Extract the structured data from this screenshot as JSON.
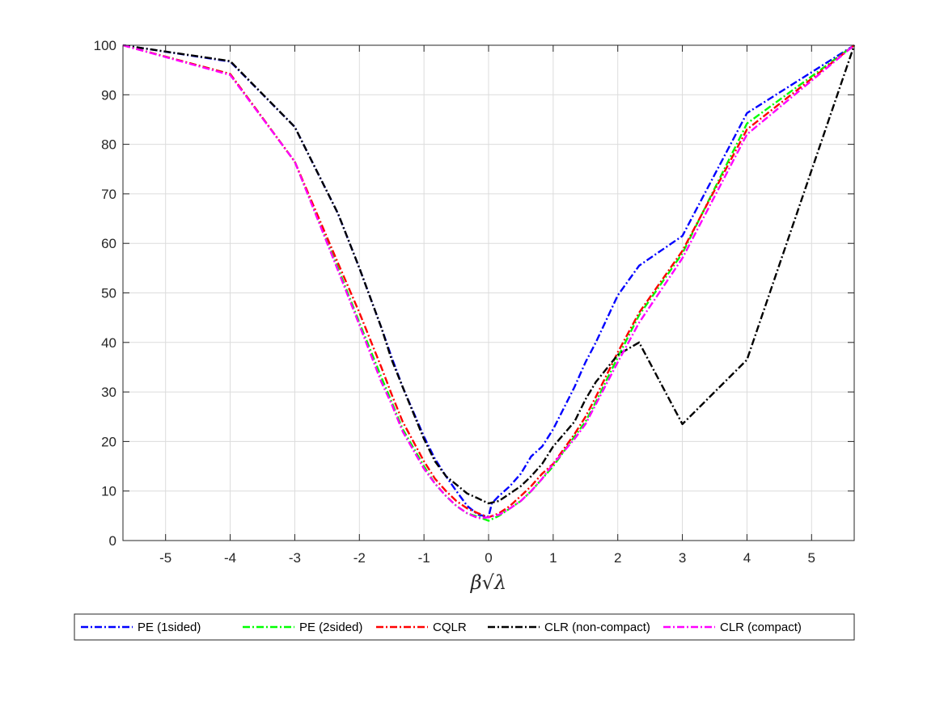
{
  "chart_data": {
    "type": "line",
    "title": "",
    "xlabel": "βλ",
    "xlabel_parts": {
      "beta": "β",
      "sqrt": "√",
      "lambda": "λ"
    },
    "ylabel": "",
    "xlim": [
      -5.66,
      5.66
    ],
    "ylim": [
      0,
      100
    ],
    "grid": true,
    "legend_placement": "bottom-outside",
    "x_ticks": [
      -5,
      -4,
      -3,
      -2,
      -1,
      0,
      1,
      2,
      3,
      4,
      5
    ],
    "x_tick_labels": [
      "-5",
      "-4",
      "-3",
      "-2",
      "-1",
      "0",
      "1",
      "2",
      "3",
      "4",
      "5"
    ],
    "y_ticks": [
      0,
      10,
      20,
      30,
      40,
      50,
      60,
      70,
      80,
      90,
      100
    ],
    "y_tick_labels": [
      "0",
      "10",
      "20",
      "30",
      "40",
      "50",
      "60",
      "70",
      "80",
      "90",
      "100"
    ],
    "series": [
      {
        "name": "PE (1sided)",
        "color": "#0000ff",
        "points": [
          [
            -5.66,
            100
          ],
          [
            -4,
            96.7
          ],
          [
            -3,
            83.5
          ],
          [
            -2.33,
            66
          ],
          [
            -2,
            55
          ],
          [
            -1.66,
            43
          ],
          [
            -1.5,
            37
          ],
          [
            -1.33,
            31
          ],
          [
            -1,
            21
          ],
          [
            -0.83,
            16.5
          ],
          [
            -0.66,
            13
          ],
          [
            -0.5,
            10
          ],
          [
            -0.33,
            7
          ],
          [
            -0.16,
            5.2
          ],
          [
            0,
            4.8
          ],
          [
            0.05,
            7.5
          ],
          [
            0.16,
            9
          ],
          [
            0.33,
            11
          ],
          [
            0.5,
            13.5
          ],
          [
            0.66,
            17
          ],
          [
            0.83,
            19
          ],
          [
            1,
            22.5
          ],
          [
            1.33,
            31
          ],
          [
            1.5,
            36
          ],
          [
            1.66,
            40
          ],
          [
            2,
            49.5
          ],
          [
            2.33,
            55.5
          ],
          [
            3,
            61.5
          ],
          [
            4,
            86.3
          ],
          [
            5.66,
            100
          ]
        ]
      },
      {
        "name": "PE (2sided)",
        "color": "#00ff00",
        "points": [
          [
            -5.66,
            100
          ],
          [
            -4,
            94.2
          ],
          [
            -3,
            76.5
          ],
          [
            -2.33,
            55
          ],
          [
            -2,
            44
          ],
          [
            -1.66,
            33
          ],
          [
            -1.5,
            28
          ],
          [
            -1.33,
            22.5
          ],
          [
            -1,
            15
          ],
          [
            -0.83,
            11.5
          ],
          [
            -0.66,
            9
          ],
          [
            -0.5,
            7
          ],
          [
            -0.33,
            5.5
          ],
          [
            -0.16,
            4.8
          ],
          [
            0,
            4
          ],
          [
            0.16,
            5
          ],
          [
            0.33,
            6.5
          ],
          [
            0.5,
            8
          ],
          [
            0.66,
            10
          ],
          [
            0.83,
            12.5
          ],
          [
            1,
            15
          ],
          [
            1.33,
            21
          ],
          [
            1.5,
            24
          ],
          [
            1.66,
            28
          ],
          [
            2,
            37
          ],
          [
            2.33,
            45.5
          ],
          [
            3,
            58
          ],
          [
            4,
            84.2
          ],
          [
            5.66,
            100
          ]
        ]
      },
      {
        "name": "CQLR",
        "color": "#ff0000",
        "points": [
          [
            -5.66,
            100
          ],
          [
            -4,
            94.2
          ],
          [
            -3,
            76.5
          ],
          [
            -2.33,
            56
          ],
          [
            -2,
            46
          ],
          [
            -1.66,
            35
          ],
          [
            -1.5,
            29.5
          ],
          [
            -1.33,
            24
          ],
          [
            -1,
            16
          ],
          [
            -0.83,
            12.5
          ],
          [
            -0.66,
            10
          ],
          [
            -0.5,
            8
          ],
          [
            -0.33,
            6.5
          ],
          [
            -0.16,
            5.5
          ],
          [
            0,
            4.7
          ],
          [
            0.16,
            5.5
          ],
          [
            0.33,
            7
          ],
          [
            0.5,
            9
          ],
          [
            0.66,
            11
          ],
          [
            0.83,
            13.5
          ],
          [
            1,
            15.5
          ],
          [
            1.33,
            21.5
          ],
          [
            1.5,
            25
          ],
          [
            1.66,
            29
          ],
          [
            2,
            38
          ],
          [
            2.33,
            46
          ],
          [
            3,
            58.5
          ],
          [
            4,
            83
          ],
          [
            5.66,
            100
          ]
        ]
      },
      {
        "name": "CLR (non-compact)",
        "color": "#000000",
        "points": [
          [
            -5.66,
            100
          ],
          [
            -4,
            96.8
          ],
          [
            -3,
            83.5
          ],
          [
            -2.33,
            66
          ],
          [
            -2,
            55
          ],
          [
            -1.66,
            43
          ],
          [
            -1.5,
            36.5
          ],
          [
            -1.33,
            31
          ],
          [
            -1,
            20.5
          ],
          [
            -0.83,
            16
          ],
          [
            -0.66,
            13
          ],
          [
            -0.5,
            11.3
          ],
          [
            -0.33,
            9.5
          ],
          [
            -0.16,
            8.5
          ],
          [
            0,
            7.5
          ],
          [
            0.16,
            8
          ],
          [
            0.33,
            9.5
          ],
          [
            0.5,
            11
          ],
          [
            0.66,
            13
          ],
          [
            0.83,
            15.5
          ],
          [
            1,
            19
          ],
          [
            1.33,
            24
          ],
          [
            1.5,
            28.5
          ],
          [
            1.66,
            32
          ],
          [
            2,
            37.5
          ],
          [
            2.33,
            40
          ],
          [
            3,
            23.5
          ],
          [
            4,
            36.5
          ],
          [
            5.66,
            100
          ]
        ]
      },
      {
        "name": "CLR (compact)",
        "color": "#ff00ff",
        "points": [
          [
            -5.66,
            100
          ],
          [
            -4,
            94
          ],
          [
            -3,
            76.5
          ],
          [
            -2.33,
            54.5
          ],
          [
            -2,
            43.5
          ],
          [
            -1.66,
            32
          ],
          [
            -1.5,
            27.5
          ],
          [
            -1.33,
            22
          ],
          [
            -1,
            14.5
          ],
          [
            -0.83,
            11.5
          ],
          [
            -0.66,
            9
          ],
          [
            -0.5,
            7
          ],
          [
            -0.33,
            5.5
          ],
          [
            -0.16,
            4.5
          ],
          [
            0,
            4.7
          ],
          [
            0.16,
            5.2
          ],
          [
            0.33,
            6.5
          ],
          [
            0.5,
            8
          ],
          [
            0.66,
            10
          ],
          [
            0.83,
            12.5
          ],
          [
            1,
            15.5
          ],
          [
            1.33,
            20.5
          ],
          [
            1.5,
            23.5
          ],
          [
            1.66,
            27.5
          ],
          [
            2,
            36
          ],
          [
            2.33,
            44
          ],
          [
            3,
            57
          ],
          [
            4,
            82
          ],
          [
            5.66,
            100
          ]
        ]
      }
    ]
  }
}
